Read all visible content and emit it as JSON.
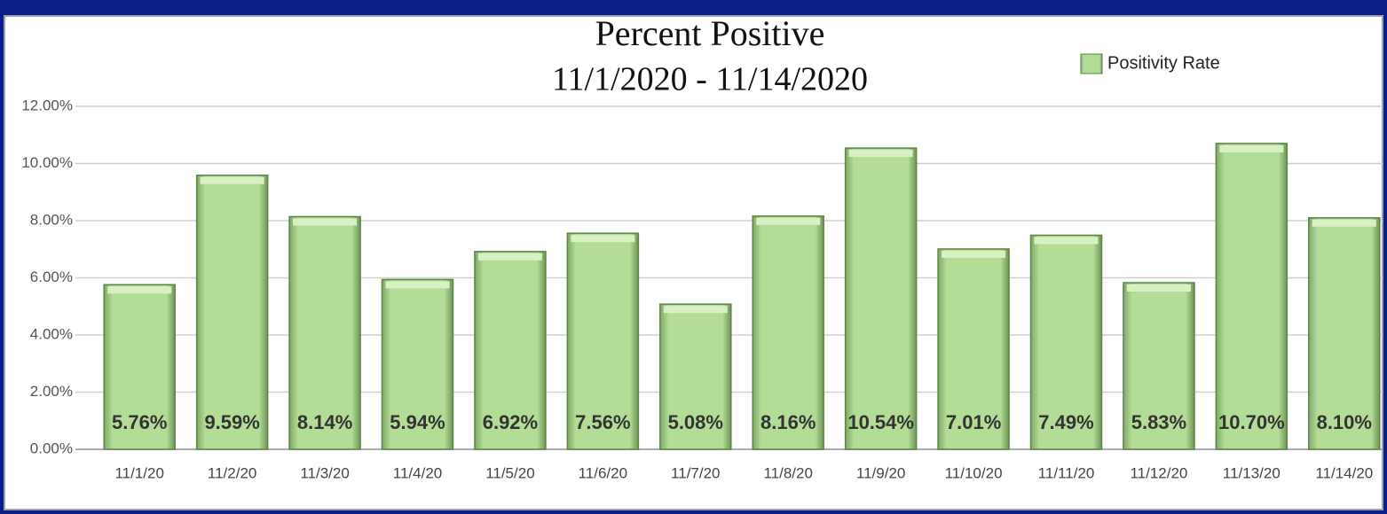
{
  "chart_data": {
    "type": "bar",
    "title": "Percent Positive",
    "subtitle": "11/1/2020 - 11/14/2020",
    "categories": [
      "11/1/20",
      "11/2/20",
      "11/3/20",
      "11/4/20",
      "11/5/20",
      "11/6/20",
      "11/7/20",
      "11/8/20",
      "11/9/20",
      "11/10/20",
      "11/11/20",
      "11/12/20",
      "11/13/20",
      "11/14/20"
    ],
    "series": [
      {
        "name": "Positivity Rate",
        "color": "#b3dc96",
        "values": [
          5.76,
          9.59,
          8.14,
          5.94,
          6.92,
          7.56,
          5.08,
          8.16,
          10.54,
          7.01,
          7.49,
          5.83,
          10.7,
          8.1
        ],
        "value_labels": [
          "5.76%",
          "9.59%",
          "8.14%",
          "5.94%",
          "6.92%",
          "7.56%",
          "5.08%",
          "8.16%",
          "10.54%",
          "7.01%",
          "7.49%",
          "5.83%",
          "10.70%",
          "8.10%"
        ]
      }
    ],
    "ylim": [
      0,
      12
    ],
    "yticks": [
      {
        "value": 0,
        "label": "0.00%"
      },
      {
        "value": 2,
        "label": "2.00%"
      },
      {
        "value": 4,
        "label": "4.00%"
      },
      {
        "value": 6,
        "label": "6.00%"
      },
      {
        "value": 8,
        "label": "8.00%"
      },
      {
        "value": 10,
        "label": "10.00%"
      },
      {
        "value": 12,
        "label": "12.00%"
      }
    ],
    "grid": true,
    "legend": "top-right"
  }
}
